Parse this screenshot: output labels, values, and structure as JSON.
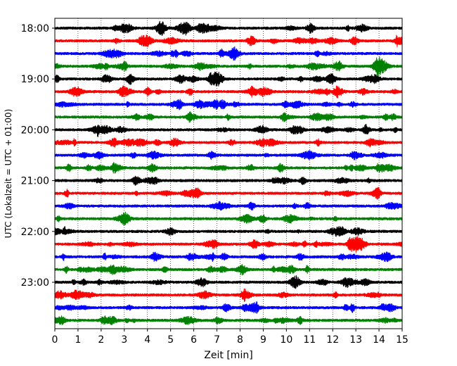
{
  "chart_data": {
    "type": "line",
    "title": "",
    "xlabel": "Zeit  [min]",
    "ylabel": "UTC (Lokalzeit = UTC + 01:00)",
    "xlim": [
      0,
      15
    ],
    "x_ticks": [
      "0",
      "1",
      "2",
      "3",
      "4",
      "5",
      "6",
      "7",
      "8",
      "9",
      "10",
      "11",
      "12",
      "13",
      "14",
      "15"
    ],
    "y_tick_labels": [
      "18:00",
      "19:00",
      "20:00",
      "21:00",
      "22:00",
      "23:00"
    ],
    "grid": "vertical-dotted",
    "trace_interval_minutes": 15,
    "traces": [
      {
        "start": "18:00",
        "color": "#000000"
      },
      {
        "start": "18:15",
        "color": "#ff0000"
      },
      {
        "start": "18:30",
        "color": "#0000ff"
      },
      {
        "start": "18:45",
        "color": "#008000"
      },
      {
        "start": "19:00",
        "color": "#000000"
      },
      {
        "start": "19:15",
        "color": "#ff0000"
      },
      {
        "start": "19:30",
        "color": "#0000ff"
      },
      {
        "start": "19:45",
        "color": "#008000"
      },
      {
        "start": "20:00",
        "color": "#000000"
      },
      {
        "start": "20:15",
        "color": "#ff0000"
      },
      {
        "start": "20:30",
        "color": "#0000ff"
      },
      {
        "start": "20:45",
        "color": "#008000"
      },
      {
        "start": "21:00",
        "color": "#000000"
      },
      {
        "start": "21:15",
        "color": "#ff0000"
      },
      {
        "start": "21:30",
        "color": "#0000ff"
      },
      {
        "start": "21:45",
        "color": "#008000"
      },
      {
        "start": "22:00",
        "color": "#000000"
      },
      {
        "start": "22:15",
        "color": "#ff0000"
      },
      {
        "start": "22:30",
        "color": "#0000ff"
      },
      {
        "start": "22:45",
        "color": "#008000"
      },
      {
        "start": "23:00",
        "color": "#000000"
      },
      {
        "start": "23:15",
        "color": "#ff0000"
      },
      {
        "start": "23:30",
        "color": "#0000ff"
      },
      {
        "start": "23:45",
        "color": "#008000"
      }
    ],
    "events": [
      {
        "trace": "22:15",
        "minute": 13.0
      },
      {
        "trace": "18:45",
        "minute": 14.1
      },
      {
        "trace": "19:00",
        "minute": 7.0
      }
    ]
  }
}
